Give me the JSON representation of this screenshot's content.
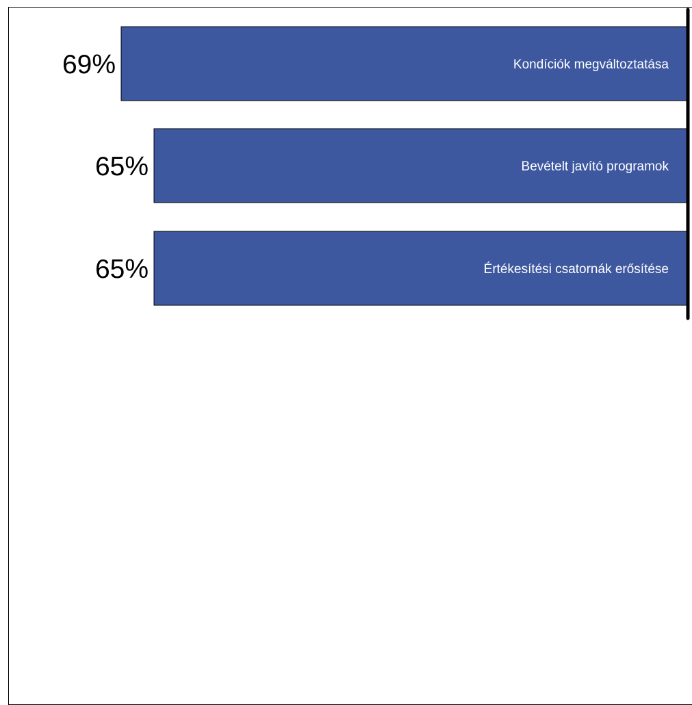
{
  "chart_data": {
    "type": "bar",
    "orientation": "horizontal",
    "direction": "right-to-left",
    "categories": [
      "Kondíciók megváltoztatása",
      "Bevételt javító programok",
      "Értékesítési csatornák erősítése"
    ],
    "values": [
      69,
      65,
      65
    ],
    "value_labels": [
      "69%",
      "65%",
      "65%"
    ],
    "title": "",
    "xlabel": "",
    "ylabel": "",
    "unit": "%",
    "grid": false,
    "legend": "none",
    "colors": {
      "bar": "#3E58A0",
      "bar_border": "#000000",
      "label_text": "#ffffff",
      "value_text": "#000000",
      "axis": "#000000"
    }
  }
}
